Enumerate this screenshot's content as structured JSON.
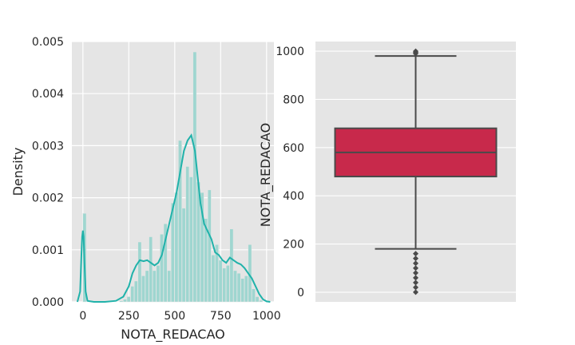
{
  "chart_data": [
    {
      "type": "bar",
      "subtype": "histogram-with-kde",
      "xlabel": "NOTA_REDACAO",
      "ylabel": "Density",
      "xlim": [
        -60,
        1040
      ],
      "ylim": [
        0,
        0.005
      ],
      "xticks": [
        0,
        250,
        500,
        750,
        1000
      ],
      "xtick_labels": [
        "0",
        "250",
        "500",
        "750",
        "1000"
      ],
      "yticks": [
        0,
        0.001,
        0.002,
        0.003,
        0.004,
        0.005
      ],
      "ytick_labels": [
        "0.000",
        "0.001",
        "0.002",
        "0.003",
        "0.004",
        "0.005"
      ],
      "grid": true,
      "bar_color": "#9fd6d0",
      "line_color": "#20b2aa",
      "bins": [
        {
          "x0": -20,
          "x1": 0,
          "value": 0.0
        },
        {
          "x0": 0,
          "x1": 20,
          "value": 0.0017
        },
        {
          "x0": 200,
          "x1": 220,
          "value": 2e-05
        },
        {
          "x0": 220,
          "x1": 240,
          "value": 5e-05
        },
        {
          "x0": 240,
          "x1": 260,
          "value": 0.0001
        },
        {
          "x0": 260,
          "x1": 280,
          "value": 0.0003
        },
        {
          "x0": 280,
          "x1": 300,
          "value": 0.0004
        },
        {
          "x0": 300,
          "x1": 320,
          "value": 0.00115
        },
        {
          "x0": 320,
          "x1": 340,
          "value": 0.0005
        },
        {
          "x0": 340,
          "x1": 360,
          "value": 0.0006
        },
        {
          "x0": 360,
          "x1": 380,
          "value": 0.00125
        },
        {
          "x0": 380,
          "x1": 400,
          "value": 0.0006
        },
        {
          "x0": 400,
          "x1": 420,
          "value": 0.0007
        },
        {
          "x0": 420,
          "x1": 440,
          "value": 0.0013
        },
        {
          "x0": 440,
          "x1": 460,
          "value": 0.0015
        },
        {
          "x0": 460,
          "x1": 480,
          "value": 0.0006
        },
        {
          "x0": 480,
          "x1": 500,
          "value": 0.0019
        },
        {
          "x0": 500,
          "x1": 520,
          "value": 0.0021
        },
        {
          "x0": 520,
          "x1": 540,
          "value": 0.0031
        },
        {
          "x0": 540,
          "x1": 560,
          "value": 0.0018
        },
        {
          "x0": 560,
          "x1": 580,
          "value": 0.0026
        },
        {
          "x0": 580,
          "x1": 600,
          "value": 0.0024
        },
        {
          "x0": 600,
          "x1": 620,
          "value": 0.0048
        },
        {
          "x0": 620,
          "x1": 640,
          "value": 0.0023
        },
        {
          "x0": 640,
          "x1": 660,
          "value": 0.0021
        },
        {
          "x0": 660,
          "x1": 680,
          "value": 0.0016
        },
        {
          "x0": 680,
          "x1": 700,
          "value": 0.00215
        },
        {
          "x0": 700,
          "x1": 720,
          "value": 0.0009
        },
        {
          "x0": 720,
          "x1": 740,
          "value": 0.0011
        },
        {
          "x0": 740,
          "x1": 760,
          "value": 0.0008
        },
        {
          "x0": 760,
          "x1": 780,
          "value": 0.00065
        },
        {
          "x0": 780,
          "x1": 800,
          "value": 0.0007
        },
        {
          "x0": 800,
          "x1": 820,
          "value": 0.0014
        },
        {
          "x0": 820,
          "x1": 840,
          "value": 0.0006
        },
        {
          "x0": 840,
          "x1": 860,
          "value": 0.00055
        },
        {
          "x0": 860,
          "x1": 880,
          "value": 0.00045
        },
        {
          "x0": 880,
          "x1": 900,
          "value": 0.0005
        },
        {
          "x0": 900,
          "x1": 920,
          "value": 0.0011
        },
        {
          "x0": 920,
          "x1": 940,
          "value": 0.00025
        },
        {
          "x0": 940,
          "x1": 960,
          "value": 0.0001
        },
        {
          "x0": 960,
          "x1": 980,
          "value": 3e-05
        }
      ],
      "kde": {
        "x": [
          -30,
          -15,
          -8,
          -4,
          0,
          4,
          8,
          15,
          25,
          60,
          120,
          180,
          220,
          250,
          270,
          290,
          310,
          330,
          350,
          370,
          390,
          410,
          430,
          450,
          470,
          490,
          510,
          530,
          550,
          570,
          590,
          610,
          625,
          640,
          660,
          680,
          700,
          720,
          740,
          760,
          780,
          800,
          820,
          840,
          860,
          880,
          900,
          920,
          940,
          960,
          980,
          1000,
          1020
        ],
        "y": [
          0,
          0.0002,
          0.0009,
          0.00125,
          0.00137,
          0.00125,
          0.0008,
          0.0002,
          2e-05,
          0,
          0,
          2e-05,
          0.0001,
          0.0003,
          0.00055,
          0.0007,
          0.0008,
          0.00078,
          0.0008,
          0.00075,
          0.0007,
          0.00075,
          0.0009,
          0.0012,
          0.0015,
          0.0018,
          0.0021,
          0.0025,
          0.0029,
          0.0031,
          0.0032,
          0.0029,
          0.0024,
          0.0019,
          0.0015,
          0.00135,
          0.0012,
          0.00095,
          0.0009,
          0.0008,
          0.00075,
          0.00085,
          0.0008,
          0.00075,
          0.00072,
          0.00065,
          0.00055,
          0.00045,
          0.0003,
          0.00015,
          5e-05,
          1e-05,
          0
        ]
      }
    },
    {
      "type": "box",
      "ylabel": "NOTA_REDACAO",
      "ylim": [
        -40,
        1040
      ],
      "yticks": [
        0,
        200,
        400,
        600,
        800,
        1000
      ],
      "ytick_labels": [
        "0",
        "200",
        "400",
        "600",
        "800",
        "1000"
      ],
      "grid": true,
      "box_color": "#c8294b",
      "line_color": "#4a4a4a",
      "whisker_low": 180,
      "q1": 480,
      "median": 580,
      "q3": 680,
      "whisker_high": 980,
      "outliers_high": [
        990,
        995,
        1000
      ],
      "outliers_low": [
        0,
        20,
        40,
        60,
        80,
        100,
        120,
        140,
        160
      ]
    }
  ]
}
